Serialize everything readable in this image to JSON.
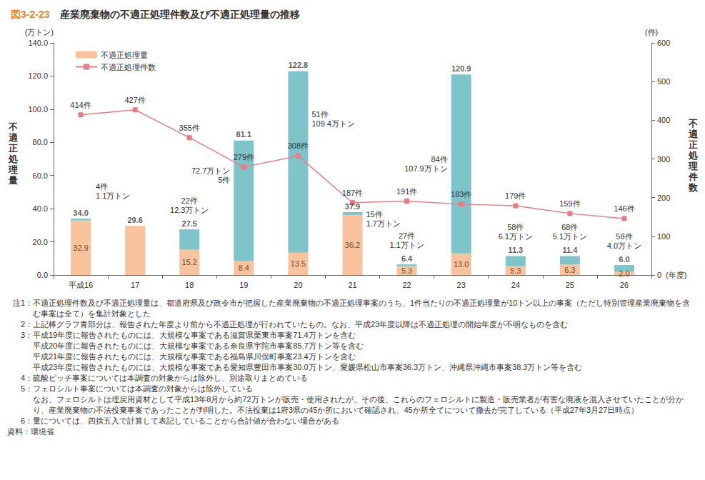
{
  "chart_data": {
    "type": "bar",
    "figure_number": "図3-2-23",
    "title": "産業廃棄物の不適正処理件数及び不適正処理量の推移",
    "ylabel": "不適正処理量",
    "y_unit": "(万トン)",
    "y2label": "不適正処理件数",
    "y2_unit": "(件)",
    "x_unit": "(年度)",
    "categories": [
      "平成16",
      "17",
      "18",
      "19",
      "20",
      "21",
      "22",
      "23",
      "24",
      "25",
      "26"
    ],
    "stacked": true,
    "grid": false,
    "legend": "upper left",
    "data_labels": true,
    "ylim": [
      0,
      140
    ],
    "yticks": [
      {
        "value": 0,
        "label": "0.0"
      },
      {
        "value": 20,
        "label": "20.0"
      },
      {
        "value": 40,
        "label": "40.0"
      },
      {
        "value": 60,
        "label": "60.0"
      },
      {
        "value": 80,
        "label": "80.0"
      },
      {
        "value": 100,
        "label": "100.0"
      },
      {
        "value": 120,
        "label": "120.0"
      },
      {
        "value": 140,
        "label": "140.0"
      }
    ],
    "y2lim": [
      0,
      600
    ],
    "y2ticks": [
      0,
      100,
      200,
      300,
      400,
      500,
      600
    ],
    "series": [
      {
        "name": "不適正処理量",
        "type": "bar",
        "color": "#f9c49d",
        "values": [
          32.9,
          29.6,
          15.2,
          8.4,
          13.5,
          36.2,
          5.3,
          13.0,
          5.3,
          6.3,
          2.0
        ],
        "value_labels": [
          "32.9",
          null,
          "15.2",
          "8.4",
          "13.5",
          "36.2",
          "5.3",
          "13.0",
          "5.3",
          "6.3",
          "2.0"
        ]
      },
      {
        "name": null,
        "type": "bar",
        "color": "#7fc4c8",
        "values": [
          1.1,
          null,
          12.3,
          72.7,
          109.4,
          1.7,
          1.1,
          107.9,
          6.1,
          5.1,
          4.0
        ],
        "annotations": [
          [
            "4件",
            "1.1万トン"
          ],
          null,
          [
            "22件",
            "12.3万トン"
          ],
          [
            "72.7万トン",
            "5件"
          ],
          [
            "51件",
            "109.4万トン"
          ],
          [
            "15件",
            "1.7万トン"
          ],
          [
            "27件",
            "1.1万トン"
          ],
          [
            "84件",
            "107.9万トン"
          ],
          [
            "58件",
            "6.1万トン"
          ],
          [
            "68件",
            "5.1万トン"
          ],
          [
            "58件",
            "4.0万トン"
          ]
        ]
      },
      {
        "name": "不適正処理件数",
        "type": "line",
        "axis": "y2",
        "color": "#ea7a84",
        "marker": "square",
        "line_style": "solid",
        "values": [
          414,
          427,
          355,
          279,
          308,
          187,
          191,
          183,
          179,
          159,
          146
        ],
        "value_labels": [
          "414件",
          "427件",
          "355件",
          "279件",
          "308件",
          "187件",
          "191件",
          "183件",
          "179件",
          "159件",
          "146件"
        ]
      }
    ],
    "totals": {
      "values": [
        34.0,
        29.6,
        27.5,
        81.1,
        122.8,
        37.9,
        6.4,
        120.9,
        11.3,
        11.4,
        6.0
      ],
      "value_labels": [
        "34.0",
        "29.6",
        "27.5",
        "81.1",
        "122.8",
        "37.9",
        "6.4",
        "120.9",
        "11.3",
        "11.4",
        "6.0"
      ]
    },
    "notes": [
      {
        "label": "注1：",
        "lines": [
          "不適正処理件数及び不適正処理量は、都道府県及び政令市が把握した産業廃棄物の不適正処理事案のうち、1件当たりの不適正処理量が10トン以上の事案（ただし特別管理産業廃棄物を含む事案は全て）を集計対象とした"
        ]
      },
      {
        "label": "2：",
        "lines": [
          "上記棒グラフ青部分は、報告された年度より前から不適正処理が行われていたもの。なお、平成23年度以降は不適正処理の開始年度が不明なものを含む"
        ]
      },
      {
        "label": "3：",
        "lines": [
          "平成19年度に報告されたものには、大規模な事案である滋賀県栗東市事案71.4万トンを含む",
          "平成20年度に報告されたものには、大規模な事案である奈良県宇陀市事案85.7万トン等を含む",
          "平成21年度に報告されたものには、大規模な事案である福島県川俣町事案23.4万トンを含む",
          "平成23年度に報告されたものには、大規模な事案である愛知県豊田市事案30.0万トン、愛媛県松山市事案36.3万トン、沖縄県沖縄市事案38.3万トン等を含む"
        ]
      },
      {
        "label": "4：",
        "lines": [
          "硫酸ピッチ事案については本調査の対象からは除外し、別途取りまとめている"
        ]
      },
      {
        "label": "5：",
        "lines": [
          "フェロシルト事案については本調査の対象からは除外している",
          "なお、フェロシルトは埋戻用資材として平成13年8月から約72万トンが販売・使用されたが、その後、これらのフェロシルトに製造・販売業者が有害な廃液を混入させていたことが分かり、産業廃棄物の不法投棄事案であったことが判明した。不法投棄は1府3県の45か所において確認され、45か所全てについて撤去が完了している（平成27年3月27日時点）"
        ]
      },
      {
        "label": "6：",
        "lines": [
          "量については、四捨五入で計算して表記していることから合計値が合わない場合がある"
        ]
      }
    ],
    "source": {
      "label": "資料：",
      "text": "環境省"
    }
  }
}
